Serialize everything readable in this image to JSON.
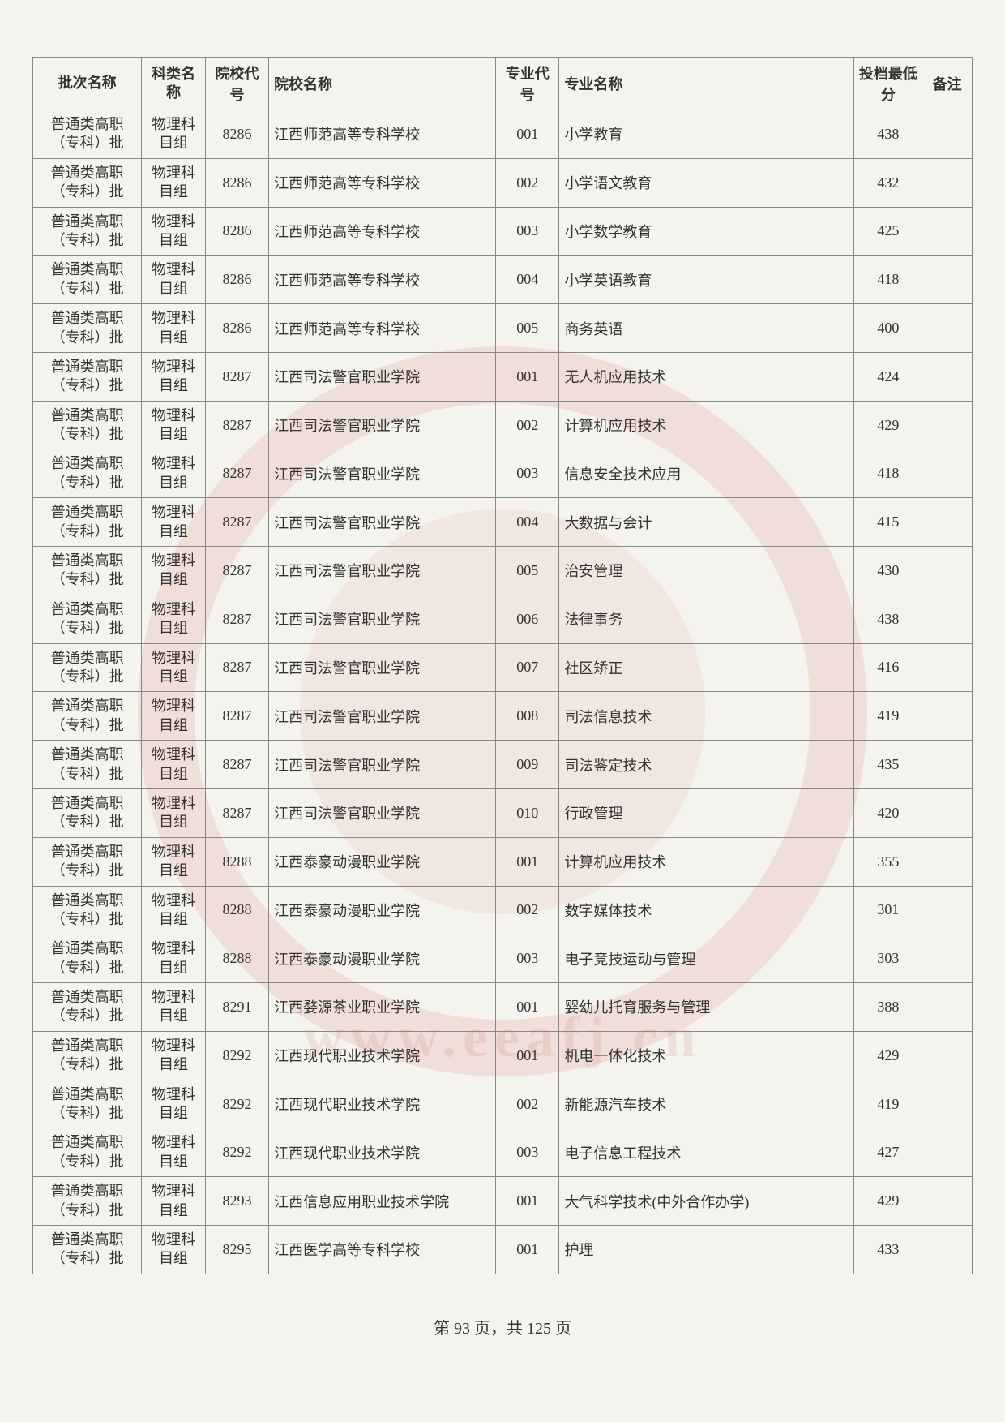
{
  "table": {
    "headers": {
      "batch": "批次名称",
      "subject": "科类名称",
      "schoolCode": "院校代号",
      "schoolName": "院校名称",
      "majorCode": "专业代号",
      "majorName": "专业名称",
      "score": "投档最低分",
      "remark": "备注"
    },
    "rows": [
      {
        "batch": "普通类高职（专科）批",
        "subject": "物理科目组",
        "schoolCode": "8286",
        "schoolName": "江西师范高等专科学校",
        "majorCode": "001",
        "majorName": "小学教育",
        "score": "438",
        "remark": ""
      },
      {
        "batch": "普通类高职（专科）批",
        "subject": "物理科目组",
        "schoolCode": "8286",
        "schoolName": "江西师范高等专科学校",
        "majorCode": "002",
        "majorName": "小学语文教育",
        "score": "432",
        "remark": ""
      },
      {
        "batch": "普通类高职（专科）批",
        "subject": "物理科目组",
        "schoolCode": "8286",
        "schoolName": "江西师范高等专科学校",
        "majorCode": "003",
        "majorName": "小学数学教育",
        "score": "425",
        "remark": ""
      },
      {
        "batch": "普通类高职（专科）批",
        "subject": "物理科目组",
        "schoolCode": "8286",
        "schoolName": "江西师范高等专科学校",
        "majorCode": "004",
        "majorName": "小学英语教育",
        "score": "418",
        "remark": ""
      },
      {
        "batch": "普通类高职（专科）批",
        "subject": "物理科目组",
        "schoolCode": "8286",
        "schoolName": "江西师范高等专科学校",
        "majorCode": "005",
        "majorName": "商务英语",
        "score": "400",
        "remark": ""
      },
      {
        "batch": "普通类高职（专科）批",
        "subject": "物理科目组",
        "schoolCode": "8287",
        "schoolName": "江西司法警官职业学院",
        "majorCode": "001",
        "majorName": "无人机应用技术",
        "score": "424",
        "remark": ""
      },
      {
        "batch": "普通类高职（专科）批",
        "subject": "物理科目组",
        "schoolCode": "8287",
        "schoolName": "江西司法警官职业学院",
        "majorCode": "002",
        "majorName": "计算机应用技术",
        "score": "429",
        "remark": ""
      },
      {
        "batch": "普通类高职（专科）批",
        "subject": "物理科目组",
        "schoolCode": "8287",
        "schoolName": "江西司法警官职业学院",
        "majorCode": "003",
        "majorName": "信息安全技术应用",
        "score": "418",
        "remark": ""
      },
      {
        "batch": "普通类高职（专科）批",
        "subject": "物理科目组",
        "schoolCode": "8287",
        "schoolName": "江西司法警官职业学院",
        "majorCode": "004",
        "majorName": "大数据与会计",
        "score": "415",
        "remark": ""
      },
      {
        "batch": "普通类高职（专科）批",
        "subject": "物理科目组",
        "schoolCode": "8287",
        "schoolName": "江西司法警官职业学院",
        "majorCode": "005",
        "majorName": "治安管理",
        "score": "430",
        "remark": ""
      },
      {
        "batch": "普通类高职（专科）批",
        "subject": "物理科目组",
        "schoolCode": "8287",
        "schoolName": "江西司法警官职业学院",
        "majorCode": "006",
        "majorName": "法律事务",
        "score": "438",
        "remark": ""
      },
      {
        "batch": "普通类高职（专科）批",
        "subject": "物理科目组",
        "schoolCode": "8287",
        "schoolName": "江西司法警官职业学院",
        "majorCode": "007",
        "majorName": "社区矫正",
        "score": "416",
        "remark": ""
      },
      {
        "batch": "普通类高职（专科）批",
        "subject": "物理科目组",
        "schoolCode": "8287",
        "schoolName": "江西司法警官职业学院",
        "majorCode": "008",
        "majorName": "司法信息技术",
        "score": "419",
        "remark": ""
      },
      {
        "batch": "普通类高职（专科）批",
        "subject": "物理科目组",
        "schoolCode": "8287",
        "schoolName": "江西司法警官职业学院",
        "majorCode": "009",
        "majorName": "司法鉴定技术",
        "score": "435",
        "remark": ""
      },
      {
        "batch": "普通类高职（专科）批",
        "subject": "物理科目组",
        "schoolCode": "8287",
        "schoolName": "江西司法警官职业学院",
        "majorCode": "010",
        "majorName": "行政管理",
        "score": "420",
        "remark": ""
      },
      {
        "batch": "普通类高职（专科）批",
        "subject": "物理科目组",
        "schoolCode": "8288",
        "schoolName": "江西泰豪动漫职业学院",
        "majorCode": "001",
        "majorName": "计算机应用技术",
        "score": "355",
        "remark": ""
      },
      {
        "batch": "普通类高职（专科）批",
        "subject": "物理科目组",
        "schoolCode": "8288",
        "schoolName": "江西泰豪动漫职业学院",
        "majorCode": "002",
        "majorName": "数字媒体技术",
        "score": "301",
        "remark": ""
      },
      {
        "batch": "普通类高职（专科）批",
        "subject": "物理科目组",
        "schoolCode": "8288",
        "schoolName": "江西泰豪动漫职业学院",
        "majorCode": "003",
        "majorName": "电子竞技运动与管理",
        "score": "303",
        "remark": ""
      },
      {
        "batch": "普通类高职（专科）批",
        "subject": "物理科目组",
        "schoolCode": "8291",
        "schoolName": "江西婺源茶业职业学院",
        "majorCode": "001",
        "majorName": "婴幼儿托育服务与管理",
        "score": "388",
        "remark": ""
      },
      {
        "batch": "普通类高职（专科）批",
        "subject": "物理科目组",
        "schoolCode": "8292",
        "schoolName": "江西现代职业技术学院",
        "majorCode": "001",
        "majorName": "机电一体化技术",
        "score": "429",
        "remark": ""
      },
      {
        "batch": "普通类高职（专科）批",
        "subject": "物理科目组",
        "schoolCode": "8292",
        "schoolName": "江西现代职业技术学院",
        "majorCode": "002",
        "majorName": "新能源汽车技术",
        "score": "419",
        "remark": ""
      },
      {
        "batch": "普通类高职（专科）批",
        "subject": "物理科目组",
        "schoolCode": "8292",
        "schoolName": "江西现代职业技术学院",
        "majorCode": "003",
        "majorName": "电子信息工程技术",
        "score": "427",
        "remark": ""
      },
      {
        "batch": "普通类高职（专科）批",
        "subject": "物理科目组",
        "schoolCode": "8293",
        "schoolName": "江西信息应用职业技术学院",
        "majorCode": "001",
        "majorName": "大气科学技术(中外合作办学)",
        "score": "429",
        "remark": ""
      },
      {
        "batch": "普通类高职（专科）批",
        "subject": "物理科目组",
        "schoolCode": "8295",
        "schoolName": "江西医学高等专科学校",
        "majorCode": "001",
        "majorName": "护理",
        "score": "433",
        "remark": ""
      }
    ]
  },
  "footer": {
    "prefix": "第 ",
    "currentPage": "93",
    "middle": " 页，共 ",
    "totalPages": "125",
    "suffix": " 页"
  },
  "watermark": {
    "url": "www.eeafj.cn"
  },
  "styling": {
    "page_bg": "#f5f3ee",
    "border_color": "#888888",
    "text_color": "#333333",
    "watermark_color": "rgba(200,80,60,0.12)",
    "font_family": "SimSun",
    "header_fontsize": 18,
    "cell_fontsize": 18,
    "col_widths": {
      "batch": 96,
      "subject": 56,
      "schoolCode": 56,
      "schoolName": 200,
      "majorCode": 56,
      "majorName": 260,
      "score": 60,
      "remark": 44
    }
  }
}
